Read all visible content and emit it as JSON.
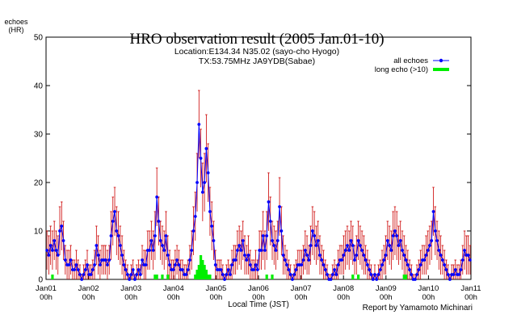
{
  "chart_data": {
    "type": "line",
    "title": "HRO observation result (2005 Jan.01-10)",
    "subtitle_lines": [
      "Location:E134.34 N35.02 (sayo-cho Hyogo)",
      "TX:53.75MHz JA9YDB(Sabae)"
    ],
    "xlabel": "Local Time (JST)",
    "ylabel_lines": [
      "echoes",
      "(HR)"
    ],
    "credit": "Report by Yamamoto Michinari",
    "ylim": [
      0,
      50
    ],
    "yticks": [
      0,
      10,
      20,
      30,
      40,
      50
    ],
    "xlim": [
      0,
      240
    ],
    "xticks": [
      {
        "x": 0,
        "day": "Jan01",
        "hour": "00h"
      },
      {
        "x": 24,
        "day": "Jan02",
        "hour": "00h"
      },
      {
        "x": 48,
        "day": "Jan03",
        "hour": "00h"
      },
      {
        "x": 72,
        "day": "Jan04",
        "hour": "00h"
      },
      {
        "x": 96,
        "day": "Jan05",
        "hour": "00h"
      },
      {
        "x": 120,
        "day": "Jan06",
        "hour": "00h"
      },
      {
        "x": 144,
        "day": "Jan07",
        "hour": "00h"
      },
      {
        "x": 168,
        "day": "Jan08",
        "hour": "00h"
      },
      {
        "x": 192,
        "day": "Jan09",
        "hour": "00h"
      },
      {
        "x": 216,
        "day": "Jan10",
        "hour": "00h"
      },
      {
        "x": 240,
        "day": "Jan11",
        "hour": "00h"
      }
    ],
    "series": [
      {
        "name": "all echoes",
        "color": "#0000ff",
        "values": [
          6,
          5,
          7,
          6,
          8,
          6,
          5,
          10,
          11,
          8,
          4,
          3,
          3,
          4,
          2,
          2,
          3,
          2,
          1,
          0,
          1,
          2,
          3,
          1,
          1,
          2,
          3,
          7,
          5,
          3,
          4,
          4,
          4,
          3,
          4,
          9,
          12,
          14,
          10,
          9,
          7,
          5,
          3,
          2,
          1,
          0,
          1,
          2,
          0,
          1,
          2,
          1,
          4,
          3,
          3,
          6,
          6,
          8,
          6,
          9,
          17,
          12,
          8,
          7,
          6,
          9,
          5,
          3,
          2,
          2,
          3,
          4,
          3,
          2,
          2,
          1,
          1,
          2,
          4,
          6,
          10,
          13,
          20,
          32,
          25,
          18,
          20,
          27,
          22,
          14,
          11,
          8,
          3,
          2,
          2,
          2,
          1,
          0,
          1,
          2,
          1,
          3,
          4,
          4,
          6,
          7,
          6,
          8,
          5,
          4,
          5,
          3,
          2,
          2,
          3,
          2,
          6,
          6,
          9,
          6,
          9,
          16,
          12,
          8,
          7,
          6,
          8,
          15,
          10,
          5,
          4,
          3,
          2,
          1,
          0,
          1,
          2,
          3,
          3,
          3,
          4,
          6,
          5,
          4,
          7,
          10,
          9,
          7,
          8,
          5,
          4,
          3,
          2,
          1,
          0,
          0,
          1,
          2,
          1,
          3,
          4,
          4,
          5,
          6,
          7,
          6,
          8,
          7,
          4,
          5,
          8,
          7,
          6,
          5,
          4,
          3,
          2,
          1,
          0,
          1,
          0,
          1,
          2,
          3,
          4,
          5,
          8,
          7,
          6,
          9,
          10,
          9,
          7,
          8,
          6,
          5,
          4,
          3,
          2,
          1,
          0,
          0,
          1,
          2,
          3,
          4,
          4,
          5,
          6,
          7,
          8,
          14,
          10,
          8,
          6,
          5,
          4,
          3,
          2,
          1,
          0,
          1,
          1,
          2,
          1,
          1,
          2,
          4,
          6,
          5,
          5,
          4
        ],
        "error": [
          4,
          4,
          4,
          4,
          4,
          4,
          4,
          5,
          5,
          4,
          3,
          3,
          3,
          3,
          2,
          2,
          3,
          2,
          2,
          1,
          2,
          2,
          3,
          2,
          2,
          2,
          3,
          4,
          4,
          3,
          3,
          3,
          3,
          3,
          3,
          5,
          5,
          5,
          5,
          5,
          4,
          4,
          3,
          2,
          2,
          1,
          2,
          2,
          1,
          2,
          2,
          2,
          3,
          3,
          3,
          4,
          4,
          4,
          4,
          5,
          6,
          5,
          4,
          4,
          4,
          5,
          4,
          3,
          2,
          2,
          3,
          3,
          3,
          2,
          2,
          2,
          2,
          2,
          3,
          4,
          5,
          5,
          6,
          7,
          6,
          6,
          6,
          7,
          6,
          5,
          5,
          4,
          3,
          2,
          2,
          2,
          2,
          1,
          2,
          2,
          2,
          3,
          3,
          3,
          4,
          4,
          4,
          4,
          4,
          3,
          4,
          3,
          2,
          2,
          3,
          2,
          4,
          4,
          5,
          4,
          5,
          6,
          5,
          4,
          4,
          4,
          4,
          6,
          5,
          4,
          3,
          3,
          2,
          2,
          1,
          2,
          2,
          3,
          3,
          3,
          3,
          4,
          4,
          3,
          4,
          5,
          5,
          4,
          4,
          4,
          3,
          3,
          2,
          2,
          1,
          1,
          2,
          2,
          2,
          3,
          3,
          3,
          4,
          4,
          4,
          4,
          4,
          4,
          3,
          4,
          4,
          4,
          4,
          4,
          3,
          3,
          2,
          2,
          1,
          2,
          1,
          2,
          2,
          3,
          3,
          4,
          4,
          4,
          4,
          5,
          5,
          5,
          4,
          4,
          4,
          4,
          3,
          3,
          2,
          2,
          1,
          1,
          2,
          2,
          3,
          3,
          3,
          4,
          4,
          4,
          4,
          5,
          5,
          4,
          4,
          4,
          3,
          3,
          2,
          2,
          1,
          2,
          2,
          2,
          2,
          2,
          2,
          3,
          4,
          4,
          4,
          3
        ]
      },
      {
        "name": "long echo (>10)",
        "color": "#00ee00",
        "values": [
          0,
          0,
          0,
          1,
          0,
          0,
          0,
          0,
          0,
          0,
          0,
          0,
          0,
          0,
          0,
          0,
          0,
          0,
          0,
          0,
          0,
          0,
          0,
          0,
          0,
          0,
          0,
          0,
          0,
          0,
          0,
          0,
          0,
          0,
          0,
          0,
          0,
          0,
          0,
          0,
          0,
          0,
          0,
          0,
          0,
          0,
          0,
          0,
          0,
          0,
          0,
          0,
          0,
          0,
          0,
          0,
          0,
          0,
          0,
          1,
          1,
          0,
          0,
          1,
          0,
          0,
          1,
          0,
          0,
          0,
          0,
          0,
          0,
          0,
          0,
          0,
          0,
          0,
          0,
          0,
          0,
          1,
          2,
          3,
          5,
          4,
          3,
          2,
          1,
          1,
          0,
          0,
          0,
          0,
          0,
          0,
          0,
          0,
          0,
          0,
          0,
          0,
          0,
          0,
          0,
          0,
          0,
          0,
          0,
          0,
          0,
          0,
          0,
          0,
          0,
          0,
          0,
          0,
          0,
          0,
          1,
          0,
          0,
          1,
          0,
          0,
          0,
          0,
          0,
          0,
          0,
          0,
          0,
          0,
          0,
          0,
          0,
          0,
          0,
          0,
          0,
          0,
          0,
          0,
          0,
          0,
          0,
          0,
          0,
          0,
          0,
          0,
          0,
          0,
          0,
          0,
          0,
          0,
          0,
          0,
          0,
          0,
          0,
          0,
          0,
          0,
          0,
          1,
          0,
          0,
          1,
          0,
          0,
          0,
          0,
          0,
          0,
          0,
          0,
          0,
          0,
          0,
          0,
          0,
          0,
          0,
          0,
          0,
          0,
          0,
          0,
          0,
          0,
          0,
          0,
          1,
          1,
          0,
          0,
          0,
          0,
          0,
          0,
          0,
          0,
          0,
          0,
          0,
          0,
          0,
          0,
          0,
          0,
          0,
          0,
          0,
          0,
          0,
          0,
          0,
          0,
          0,
          0,
          0,
          0,
          0,
          0,
          0,
          0,
          0,
          0,
          0,
          0,
          0,
          0,
          0,
          0,
          0,
          0,
          0,
          0,
          0,
          0,
          0,
          0,
          0
        ]
      }
    ],
    "legend_placement": "top-right",
    "grid": false,
    "error_bar_color": "#cc0000"
  }
}
